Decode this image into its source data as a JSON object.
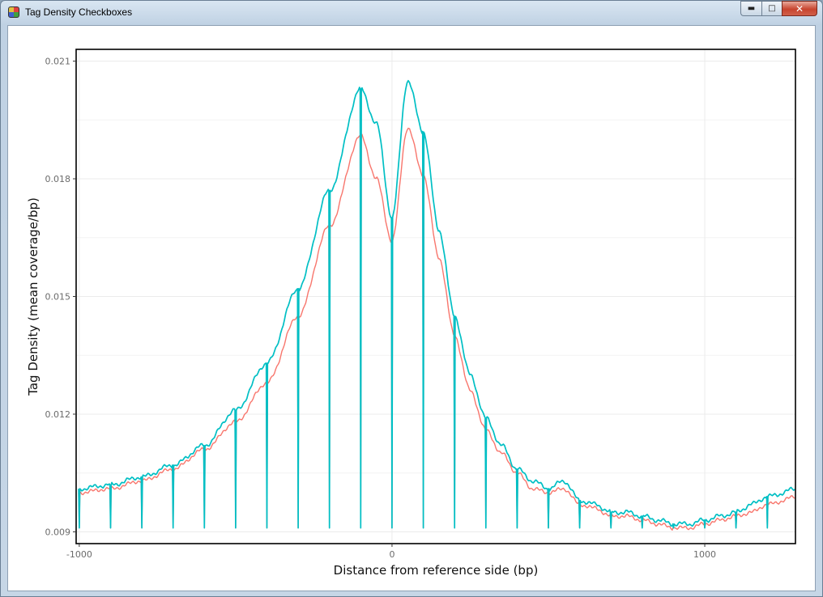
{
  "window": {
    "title": "Tag Density Checkboxes",
    "icon": "app-cube-icon",
    "buttons": {
      "minimize": "minimize-icon",
      "maximize": "maximize-icon",
      "close": "close-icon"
    }
  },
  "chart_data": {
    "type": "line",
    "title": "",
    "xlabel": "Distance from reference side (bp)",
    "ylabel": "Tag Density (mean coverage/bp)",
    "xlim": [
      -1010,
      1290
    ],
    "ylim": [
      0.0887,
      0.0213
    ],
    "x_ticks": [
      -1000,
      0,
      1000
    ],
    "x_tick_labels": [
      "-1000",
      "0",
      "1000"
    ],
    "y_ticks": [
      0.009,
      0.012,
      0.015,
      0.018,
      0.021
    ],
    "y_tick_labels": [
      "0.009",
      "0.012",
      "0.015",
      "0.018",
      "0.021"
    ],
    "grid": true,
    "legend": "none",
    "dip_value": 0.0091,
    "dip_spacing_bp": 100,
    "dip_range": [
      -1000,
      1300
    ],
    "series": [
      {
        "color": "#f8766d",
        "points": [
          [
            -1000,
            0.01
          ],
          [
            -900,
            0.0101
          ],
          [
            -800,
            0.0103
          ],
          [
            -700,
            0.0106
          ],
          [
            -600,
            0.0111
          ],
          [
            -500,
            0.0118
          ],
          [
            -400,
            0.0128
          ],
          [
            -300,
            0.0145
          ],
          [
            -200,
            0.0168
          ],
          [
            -100,
            0.0191
          ],
          [
            -50,
            0.018
          ],
          [
            0,
            0.0164
          ],
          [
            50,
            0.0193
          ],
          [
            100,
            0.0181
          ],
          [
            150,
            0.016
          ],
          [
            200,
            0.014
          ],
          [
            250,
            0.0126
          ],
          [
            300,
            0.0116
          ],
          [
            350,
            0.011
          ],
          [
            400,
            0.0105
          ],
          [
            450,
            0.0101
          ],
          [
            500,
            0.01
          ],
          [
            550,
            0.0101
          ],
          [
            600,
            0.0097
          ],
          [
            650,
            0.0096
          ],
          [
            700,
            0.0094
          ],
          [
            750,
            0.0094
          ],
          [
            800,
            0.0093
          ],
          [
            850,
            0.0092
          ],
          [
            900,
            0.0091
          ],
          [
            950,
            0.0091
          ],
          [
            1000,
            0.0092
          ],
          [
            1050,
            0.0093
          ],
          [
            1100,
            0.0094
          ],
          [
            1150,
            0.0095
          ],
          [
            1200,
            0.0097
          ],
          [
            1300,
            0.0099
          ]
        ]
      },
      {
        "color": "#00bfc4",
        "points": [
          [
            -1000,
            0.0101
          ],
          [
            -900,
            0.0102
          ],
          [
            -800,
            0.0104
          ],
          [
            -700,
            0.0107
          ],
          [
            -600,
            0.0112
          ],
          [
            -500,
            0.0121
          ],
          [
            -400,
            0.0133
          ],
          [
            -300,
            0.0152
          ],
          [
            -200,
            0.0177
          ],
          [
            -100,
            0.0203
          ],
          [
            -50,
            0.0194
          ],
          [
            0,
            0.017
          ],
          [
            50,
            0.0205
          ],
          [
            100,
            0.0192
          ],
          [
            150,
            0.0167
          ],
          [
            200,
            0.0145
          ],
          [
            250,
            0.013
          ],
          [
            300,
            0.0119
          ],
          [
            350,
            0.0112
          ],
          [
            400,
            0.0106
          ],
          [
            450,
            0.0103
          ],
          [
            500,
            0.0101
          ],
          [
            550,
            0.0103
          ],
          [
            600,
            0.0098
          ],
          [
            650,
            0.0097
          ],
          [
            700,
            0.0095
          ],
          [
            750,
            0.0095
          ],
          [
            800,
            0.0094
          ],
          [
            850,
            0.0093
          ],
          [
            900,
            0.0092
          ],
          [
            950,
            0.0092
          ],
          [
            1000,
            0.0093
          ],
          [
            1050,
            0.0094
          ],
          [
            1100,
            0.0095
          ],
          [
            1150,
            0.0097
          ],
          [
            1200,
            0.0099
          ],
          [
            1300,
            0.0101
          ]
        ]
      }
    ]
  }
}
